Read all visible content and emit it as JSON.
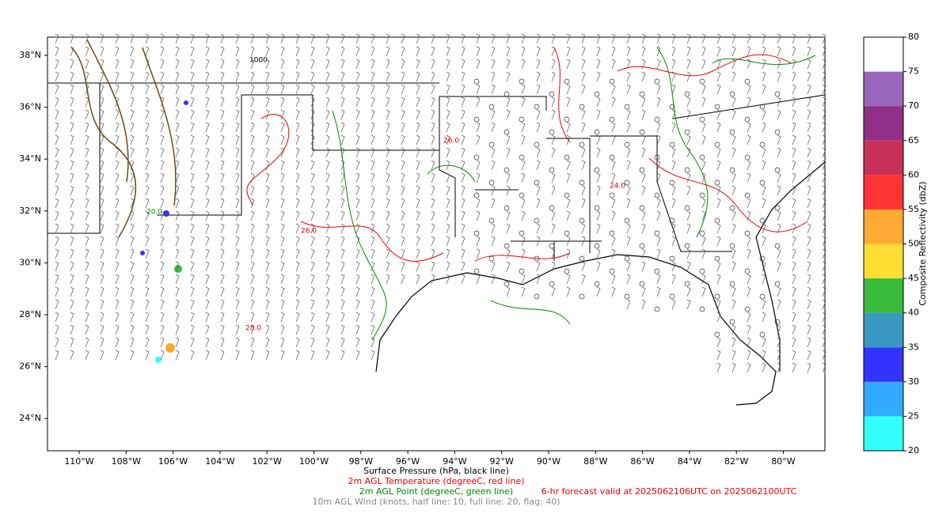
{
  "map": {
    "lat_labels": [
      "38°N",
      "36°N",
      "34°N",
      "32°N",
      "30°N",
      "28°N",
      "26°N",
      "24°N"
    ],
    "lon_labels": [
      "110°W",
      "108°W",
      "106°W",
      "104°W",
      "102°W",
      "100°W",
      "98°W",
      "96°W",
      "94°W",
      "92°W",
      "90°W",
      "88°W",
      "86°W",
      "84°W",
      "82°W",
      "80°W"
    ],
    "contour_labels": [
      "26.0",
      "26.0",
      "24.0",
      "20.0",
      "28.0",
      "1000"
    ]
  },
  "colorbar": {
    "label": "Composite Reflectivity (dbZ)",
    "ticks": [
      20,
      25,
      30,
      35,
      40,
      45,
      50,
      55,
      60,
      65,
      70,
      75,
      80
    ],
    "colors": [
      "#33ffff",
      "#33aaff",
      "#3333ff",
      "#3a99c0",
      "#3bbb3b",
      "#ffdd33",
      "#ffaa33",
      "#ff3333",
      "#c83258",
      "#922f88",
      "#9966bb",
      "#ffffff"
    ]
  },
  "caption": {
    "pressure": "Surface Pressure (hPa, black line)",
    "temperature": "2m AGL Temperature (degreeC, red line)",
    "dewpoint": "2m AGL Point (degreeC, green line)",
    "forecast": "6-hr forecast valid at 2025062106UTC on 2025062100UTC",
    "wind": "10m AGL Wind (knots, half line: 10, full line: 20, flag: 40)"
  }
}
